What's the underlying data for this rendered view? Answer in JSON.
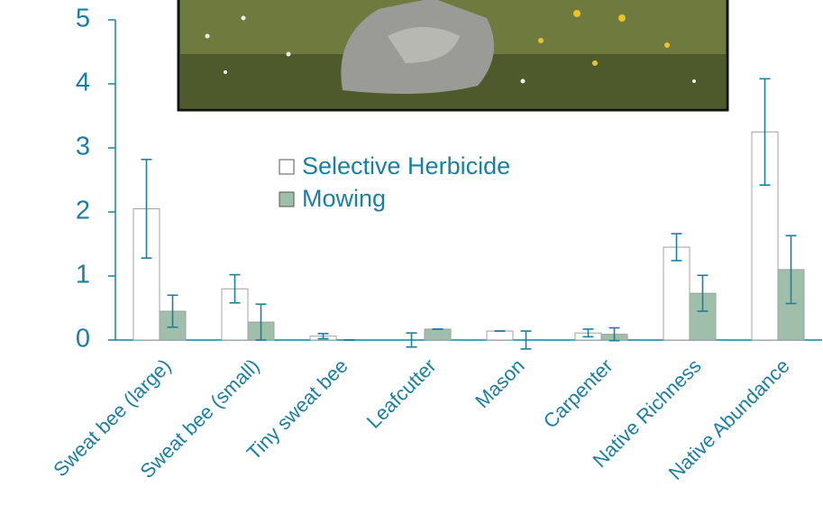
{
  "chart_data": {
    "type": "bar",
    "categories": [
      "Sweat bee (large)",
      "Sweat bee (small)",
      "Tiny sweat bee",
      "Leafcutter",
      "Mason",
      "Carpenter",
      "Native Richness",
      "Native Abundance"
    ],
    "series": [
      {
        "name": "Selective Herbicide",
        "color": "#ffffff",
        "values": [
          2.05,
          0.8,
          0.06,
          0,
          0.14,
          0.11,
          1.45,
          3.25
        ],
        "errors": [
          0.77,
          0.22,
          0.04,
          0.11,
          0,
          0.06,
          0.21,
          0.83
        ]
      },
      {
        "name": "Mowing",
        "color": "#9fbfab",
        "values": [
          0.45,
          0.28,
          0,
          0.17,
          0,
          0.09,
          0.73,
          1.1
        ],
        "errors": [
          0.25,
          0.28,
          0,
          0,
          0.14,
          0.1,
          0.28,
          0.53
        ]
      }
    ],
    "ylim": [
      0,
      5
    ],
    "yticks": [
      0,
      1,
      2,
      3,
      4,
      5
    ]
  }
}
